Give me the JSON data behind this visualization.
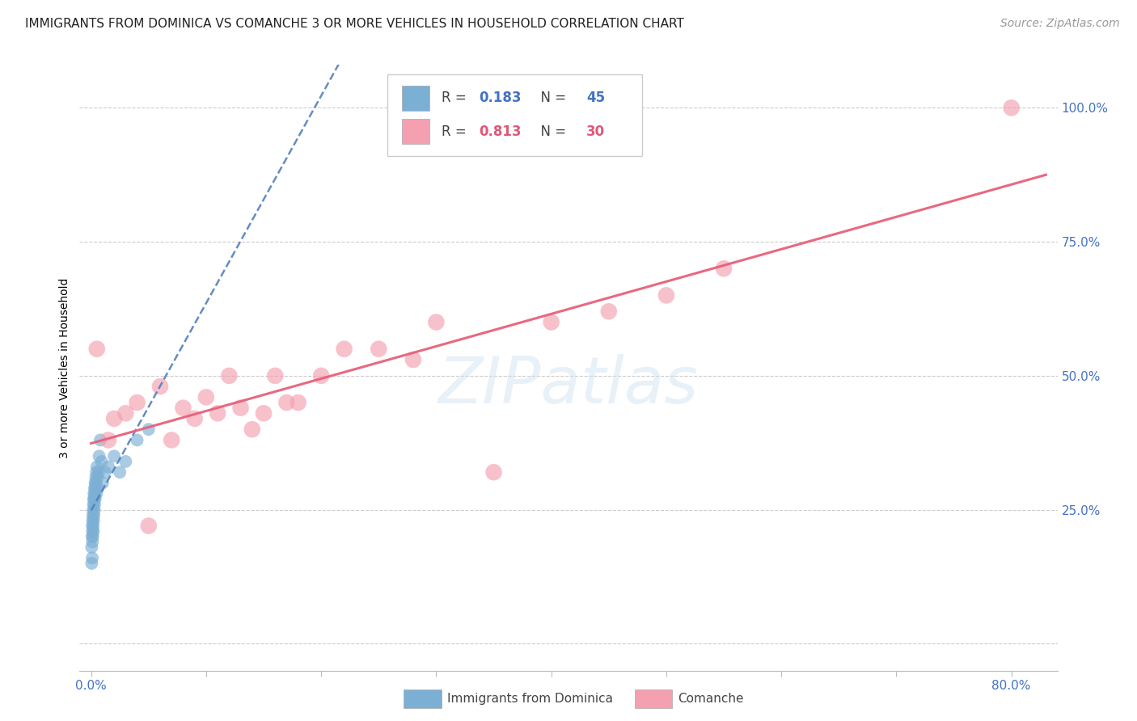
{
  "title": "IMMIGRANTS FROM DOMINICA VS COMANCHE 3 OR MORE VEHICLES IN HOUSEHOLD CORRELATION CHART",
  "source_text": "Source: ZipAtlas.com",
  "ylabel": "3 or more Vehicles in Household",
  "watermark": "ZIPatlas",
  "blue_color": "#7bafd4",
  "pink_color": "#f4a0b0",
  "blue_line_color": "#5580bb",
  "pink_line_color": "#e8607a",
  "legend1_r": "0.183",
  "legend1_n": "45",
  "legend2_r": "0.813",
  "legend2_n": "30",
  "legend1_label": "Immigrants from Dominica",
  "legend2_label": "Comanche",
  "xlim": [
    -1.0,
    84.0
  ],
  "ylim": [
    -5.0,
    108.0
  ],
  "blue_x": [
    0.05,
    0.05,
    0.08,
    0.1,
    0.1,
    0.12,
    0.12,
    0.13,
    0.15,
    0.15,
    0.18,
    0.18,
    0.2,
    0.2,
    0.22,
    0.22,
    0.25,
    0.25,
    0.28,
    0.28,
    0.3,
    0.3,
    0.32,
    0.35,
    0.35,
    0.38,
    0.4,
    0.42,
    0.45,
    0.48,
    0.5,
    0.55,
    0.6,
    0.65,
    0.7,
    0.8,
    0.9,
    1.0,
    1.2,
    1.5,
    2.0,
    2.5,
    3.0,
    4.0,
    5.0
  ],
  "blue_y": [
    15.0,
    18.0,
    20.0,
    22.0,
    16.0,
    21.0,
    19.0,
    23.0,
    24.0,
    20.0,
    25.0,
    22.0,
    26.0,
    21.0,
    27.0,
    23.0,
    28.0,
    24.0,
    27.0,
    25.0,
    29.0,
    26.0,
    28.0,
    30.0,
    27.0,
    29.0,
    31.0,
    30.0,
    32.0,
    28.0,
    33.0,
    31.0,
    29.0,
    32.0,
    35.0,
    38.0,
    34.0,
    30.0,
    32.0,
    33.0,
    35.0,
    32.0,
    34.0,
    38.0,
    40.0
  ],
  "pink_x": [
    0.5,
    1.5,
    2.0,
    3.0,
    4.0,
    5.0,
    6.0,
    7.0,
    8.0,
    9.0,
    10.0,
    11.0,
    12.0,
    13.0,
    14.0,
    15.0,
    16.0,
    17.0,
    18.0,
    20.0,
    22.0,
    25.0,
    28.0,
    30.0,
    35.0,
    40.0,
    45.0,
    50.0,
    55.0,
    80.0
  ],
  "pink_y": [
    55.0,
    38.0,
    42.0,
    43.0,
    45.0,
    22.0,
    48.0,
    38.0,
    44.0,
    42.0,
    46.0,
    43.0,
    50.0,
    44.0,
    40.0,
    43.0,
    50.0,
    45.0,
    45.0,
    50.0,
    55.0,
    55.0,
    53.0,
    60.0,
    32.0,
    60.0,
    62.0,
    65.0,
    70.0,
    100.0
  ],
  "grid_color": "#cccccc",
  "background_color": "#ffffff",
  "title_fontsize": 11,
  "axis_label_fontsize": 10,
  "tick_fontsize": 11,
  "source_fontsize": 10
}
